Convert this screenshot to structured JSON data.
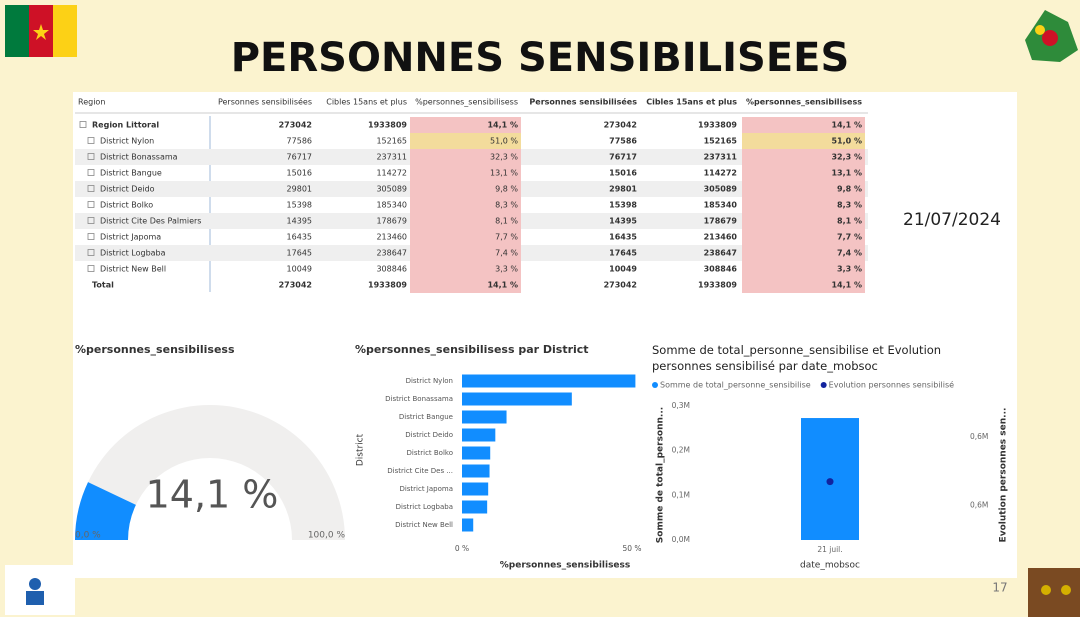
{
  "title": "PERSONNES SENSIBILISEES",
  "date": "21/07/2024",
  "page_number": "17",
  "table": {
    "columns": [
      "Region",
      "Personnes sensibilisées",
      "Cibles 15ans et plus",
      "%personnes_sensibilisess",
      "Personnes sensibilisées",
      "Cibles 15ans et plus",
      "%personnes_sensibilisess"
    ],
    "rows": [
      [
        "Region Littoral",
        273042,
        1933809,
        "14,1 %",
        273042,
        1933809,
        "14,1 %"
      ],
      [
        "District Nylon",
        77586,
        152165,
        "51,0 %",
        77586,
        152165,
        "51,0 %"
      ],
      [
        "District Bonassama",
        76717,
        237311,
        "32,3 %",
        76717,
        237311,
        "32,3 %"
      ],
      [
        "District Bangue",
        15016,
        114272,
        "13,1 %",
        15016,
        114272,
        "13,1 %"
      ],
      [
        "District Deido",
        29801,
        305089,
        "9,8 %",
        29801,
        305089,
        "9,8 %"
      ],
      [
        "District Bolko",
        15398,
        185340,
        "8,3 %",
        15398,
        185340,
        "8,3 %"
      ],
      [
        "District Cite Des Palmiers",
        14395,
        178679,
        "8,1 %",
        14395,
        178679,
        "8,1 %"
      ],
      [
        "District Japoma",
        16435,
        213460,
        "7,7 %",
        16435,
        213460,
        "7,7 %"
      ],
      [
        "District Logbaba",
        17645,
        238647,
        "7,4 %",
        17645,
        238647,
        "7,4 %"
      ],
      [
        "District New Bell",
        10049,
        308846,
        "3,3 %",
        10049,
        308846,
        "3,3 %"
      ],
      [
        "Total",
        273042,
        1933809,
        "14,1 %",
        273042,
        1933809,
        "14,1 %"
      ]
    ]
  },
  "chart_data": [
    {
      "type": "gauge",
      "title": "%personnes_sensibilisess",
      "values": [
        14.1
      ],
      "value_labels": [
        "14,1 %"
      ],
      "ylim": [
        0,
        100
      ],
      "yticks": [
        {
          "value": 0,
          "label": "0,0 %"
        },
        {
          "value": 100,
          "label": "100,0 %"
        }
      ],
      "color": "#118dff",
      "track_color": "#f0efee"
    },
    {
      "type": "hbar",
      "title": "%personnes_sensibilisess par District",
      "x_label": "%personnes_sensibilisess",
      "y_label": "District",
      "categories": [
        "District Nylon",
        "District Bonassama",
        "District Bangue",
        "District Deido",
        "District Bolko",
        "District Cite Des ...",
        "District Japoma",
        "District Logbaba",
        "District New Bell"
      ],
      "values": [
        51.0,
        32.3,
        13.1,
        9.8,
        8.3,
        8.1,
        7.7,
        7.4,
        3.3
      ],
      "xlim": [
        0,
        50
      ],
      "xticks": [
        {
          "value": 0,
          "label": "0 %"
        },
        {
          "value": 50,
          "label": "50 %"
        }
      ],
      "color": "#118dff"
    },
    {
      "type": "combo",
      "title": "Somme de total_personne_sensibilise et Evolution personnes sensibilisé par date_mobsoc",
      "x_label": "date_mobsoc",
      "y_label": "Somme de total_personn...",
      "y2_label": "Evolution personnes sen...",
      "categories": [
        "21 juil."
      ],
      "series": [
        {
          "name": "Somme de total_personne_sensibilise",
          "color": "#118dff",
          "values": [
            273042
          ]
        },
        {
          "name": "Evolution personnes sensibilisé",
          "color": "#12239e",
          "values": [
            594000
          ],
          "axis": "y2"
        }
      ],
      "ylim": [
        0,
        300000
      ],
      "yticks": [
        {
          "value": 0,
          "label": "0,0M"
        },
        {
          "value": 100000,
          "label": "0,1M"
        },
        {
          "value": 200000,
          "label": "0,2M"
        },
        {
          "value": 300000,
          "label": "0,3M"
        }
      ],
      "y2lim": [
        560000,
        638000
      ],
      "y2ticks": [
        {
          "value": 580000,
          "label": "0,6M"
        },
        {
          "value": 620000,
          "label": "0,6M"
        }
      ]
    }
  ]
}
